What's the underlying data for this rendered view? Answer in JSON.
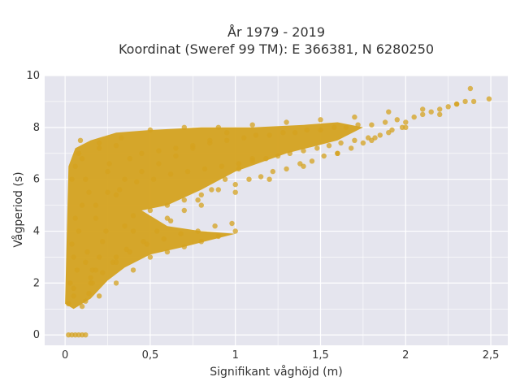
{
  "chart_data": {
    "type": "scatter",
    "title_line1": "År 1979 - 2019",
    "title_line2": "Koordinat (Sweref 99 TM): E 366381, N 6280250",
    "xlabel": "Signifikant våghöjd (m)",
    "ylabel": "Vågperiod (s)",
    "xlim": [
      -0.12,
      2.6
    ],
    "ylim": [
      -0.4,
      10.0
    ],
    "x_ticks": [
      0,
      0.5,
      1,
      1.5,
      2,
      2.5
    ],
    "x_tick_labels": [
      "0",
      "0,5",
      "1",
      "1,5",
      "2",
      "2,5"
    ],
    "y_ticks": [
      0,
      2,
      4,
      6,
      8,
      10
    ],
    "y_tick_labels": [
      "0",
      "2",
      "4",
      "6",
      "8",
      "10"
    ],
    "grid": true,
    "background": "#e5e5ee",
    "marker_color": "#d4a21f",
    "series": [
      {
        "values_note": "",
        "x": [
          0.02,
          0.04,
          0.06,
          0.08,
          0.1,
          0.12,
          0.02,
          0.03,
          0.05,
          0.06,
          0.04,
          0.08,
          0.05,
          0.07,
          0.04,
          0.1,
          0.06,
          0.09,
          0.05,
          0.12,
          0.08,
          0.14,
          0.1,
          0.15,
          0.13,
          0.18,
          0.12,
          0.2,
          0.16,
          0.22,
          0.18,
          0.25,
          0.2,
          0.28,
          0.24,
          0.3,
          0.26,
          0.33,
          0.3,
          0.35,
          0.32,
          0.38,
          0.36,
          0.4,
          0.42,
          0.45,
          0.48,
          0.5,
          0.52,
          0.55,
          0.58,
          0.6,
          0.62,
          0.65,
          0.68,
          0.7,
          0.72,
          0.75,
          0.78,
          0.8,
          0.82,
          0.85,
          0.88,
          0.9,
          0.92,
          0.95,
          0.98,
          1.0,
          1.02,
          1.05,
          1.08,
          1.1,
          1.12,
          1.15,
          1.18,
          1.2,
          1.22,
          1.25,
          1.28,
          1.3,
          1.32,
          1.35,
          1.38,
          1.4,
          1.42,
          1.45,
          1.48,
          1.5,
          1.52,
          1.55,
          1.58,
          1.6,
          1.62,
          1.65,
          1.68,
          1.7,
          1.72,
          1.75,
          1.78,
          1.8,
          1.82,
          1.85,
          1.88,
          1.9,
          1.92,
          1.95,
          1.98,
          2.0,
          2.05,
          2.1,
          2.15,
          2.2,
          2.25,
          2.3,
          2.35,
          2.38,
          2.49,
          0.2,
          0.3,
          0.4,
          0.5,
          0.6,
          0.7,
          0.8,
          0.9,
          1.0,
          0.25,
          0.35,
          0.45,
          0.55,
          0.65,
          0.75,
          0.85,
          0.95,
          0.15,
          0.22,
          0.3,
          0.38,
          0.46,
          0.54,
          0.62,
          0.7,
          0.78,
          0.86,
          0.94,
          1.02,
          1.1,
          0.1,
          0.12,
          0.14,
          0.16,
          0.18,
          0.2,
          0.3,
          0.5,
          0.7,
          0.9,
          1.1,
          1.3,
          1.5,
          1.7,
          1.9,
          2.1,
          2.3,
          0.4,
          0.6,
          0.8,
          1.0,
          1.2,
          1.4,
          1.6,
          1.8,
          2.0,
          2.2,
          2.4
        ],
        "y": [
          0,
          0,
          0,
          0,
          0,
          0,
          1.2,
          2.0,
          3.0,
          4.5,
          6.0,
          7.0,
          1.5,
          2.5,
          3.5,
          5.0,
          6.5,
          7.5,
          1.8,
          2.8,
          4.0,
          5.5,
          6.8,
          2.2,
          3.2,
          4.5,
          6.0,
          7.2,
          2.5,
          3.6,
          5.0,
          6.3,
          7.4,
          2.8,
          4.0,
          5.4,
          6.6,
          7.6,
          3.0,
          4.2,
          5.6,
          6.8,
          3.3,
          4.6,
          5.9,
          7.0,
          3.5,
          4.8,
          6.0,
          7.1,
          3.7,
          5.0,
          6.2,
          7.2,
          3.9,
          5.2,
          6.3,
          7.3,
          4.0,
          5.4,
          6.4,
          7.4,
          4.2,
          5.6,
          6.5,
          7.5,
          4.3,
          5.8,
          6.6,
          7.6,
          6.0,
          6.7,
          7.7,
          6.1,
          6.8,
          7.7,
          6.3,
          6.9,
          7.8,
          6.4,
          7.0,
          7.8,
          6.6,
          7.1,
          7.9,
          6.7,
          7.2,
          7.9,
          6.9,
          7.3,
          8.0,
          7.0,
          7.4,
          8.0,
          7.2,
          7.5,
          8.1,
          7.4,
          7.6,
          8.1,
          7.6,
          7.7,
          8.2,
          7.8,
          7.9,
          8.3,
          8.0,
          8.2,
          8.4,
          8.5,
          8.6,
          8.7,
          8.8,
          8.9,
          9.0,
          9.5,
          9.1,
          1.5,
          2.0,
          2.5,
          3.0,
          3.2,
          3.4,
          3.6,
          3.8,
          4.0,
          5.5,
          6.0,
          6.3,
          6.6,
          6.9,
          7.2,
          7.5,
          7.8,
          2.0,
          2.4,
          2.8,
          3.2,
          3.6,
          4.0,
          4.4,
          4.8,
          5.2,
          5.6,
          6.0,
          6.4,
          6.8,
          1.1,
          1.3,
          1.6,
          2.0,
          2.5,
          3.0,
          7.3,
          7.9,
          8.0,
          8.0,
          8.1,
          8.2,
          8.3,
          8.4,
          8.6,
          8.7,
          8.9,
          4.0,
          4.5,
          5.0,
          5.5,
          6.0,
          6.5,
          7.0,
          7.5,
          8.0,
          8.5,
          9.0
        ]
      }
    ]
  }
}
